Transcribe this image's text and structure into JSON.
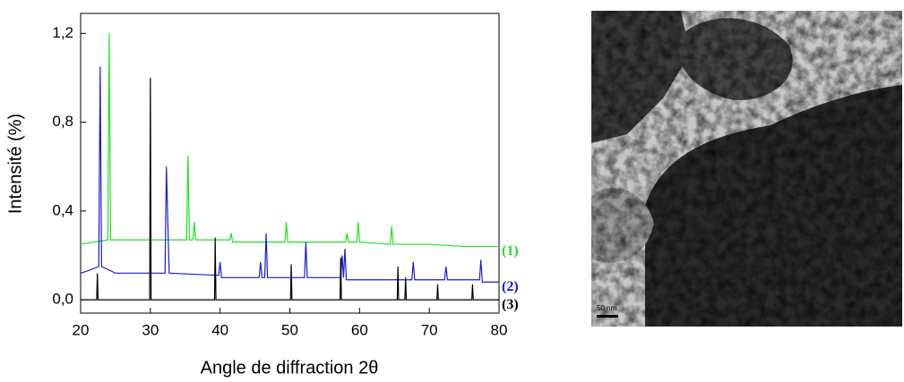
{
  "chart_data": {
    "type": "line",
    "y_label": "Intensité (%)",
    "x_label": "Angle de diffraction 2θ",
    "xlim": [
      20,
      80
    ],
    "xticks": [
      20,
      30,
      40,
      50,
      60,
      70,
      80
    ],
    "ylim": [
      -0.06,
      1.29
    ],
    "yticks": [
      {
        "value": 0,
        "label": "0,0"
      },
      {
        "value": 0.4,
        "label": "0,4"
      },
      {
        "value": 0.8,
        "label": "0,8"
      },
      {
        "value": 1.2,
        "label": "1,2"
      }
    ],
    "series": [
      {
        "name": "(1)",
        "color": "#22e022",
        "x": [
          20,
          22,
          23.9,
          24.1,
          24.3,
          26,
          35.2,
          35.4,
          35.6,
          36.1,
          36.3,
          36.5,
          41.4,
          41.6,
          41.8,
          49.3,
          49.5,
          49.7,
          58,
          58.2,
          58.4,
          59.6,
          59.8,
          60,
          64.4,
          64.6,
          64.8,
          70,
          75,
          80
        ],
        "values": [
          0.25,
          0.26,
          0.27,
          1.2,
          0.27,
          0.27,
          0.27,
          0.65,
          0.27,
          0.27,
          0.35,
          0.27,
          0.27,
          0.3,
          0.26,
          0.26,
          0.35,
          0.26,
          0.26,
          0.3,
          0.26,
          0.26,
          0.35,
          0.26,
          0.25,
          0.33,
          0.25,
          0.25,
          0.24,
          0.24
        ]
      },
      {
        "name": "(2)",
        "color": "#1a1ad6",
        "x": [
          20,
          21,
          22.6,
          22.8,
          23,
          25,
          32.1,
          32.3,
          32.5,
          32.7,
          39.8,
          40,
          40.2,
          45.6,
          45.8,
          46,
          46.4,
          46.6,
          46.8,
          52.1,
          52.3,
          52.5,
          57.3,
          57.5,
          57.7,
          57.9,
          58.1,
          67.5,
          67.7,
          67.9,
          72.2,
          72.4,
          72.6,
          77.2,
          77.4,
          77.6,
          80
        ],
        "values": [
          0.12,
          0.13,
          0.15,
          1.05,
          0.15,
          0.12,
          0.12,
          0.6,
          0.35,
          0.12,
          0.11,
          0.17,
          0.1,
          0.1,
          0.17,
          0.1,
          0.1,
          0.3,
          0.1,
          0.1,
          0.26,
          0.1,
          0.1,
          0.2,
          0.1,
          0.23,
          0.09,
          0.09,
          0.17,
          0.09,
          0.09,
          0.15,
          0.09,
          0.09,
          0.18,
          0.08,
          0.08
        ]
      },
      {
        "name": "(3)",
        "color": "#000000",
        "x": [
          20,
          22.3,
          22.4,
          22.5,
          29.9,
          30,
          30.1,
          39.2,
          39.3,
          39.4,
          50.1,
          50.2,
          50.3,
          57.2,
          57.3,
          57.4,
          65.4,
          65.5,
          65.6,
          66.5,
          66.6,
          66.7,
          71.1,
          71.2,
          71.3,
          76.1,
          76.2,
          76.3,
          80
        ],
        "values": [
          0,
          0,
          0.12,
          0,
          0,
          1.0,
          0,
          0,
          0.28,
          0,
          0,
          0.16,
          0,
          0,
          0.19,
          0,
          0,
          0.15,
          0,
          0,
          0.1,
          0,
          0,
          0.07,
          0,
          0,
          0.07,
          0,
          0
        ]
      }
    ]
  },
  "image": {
    "scale_bar": "50 nm"
  }
}
